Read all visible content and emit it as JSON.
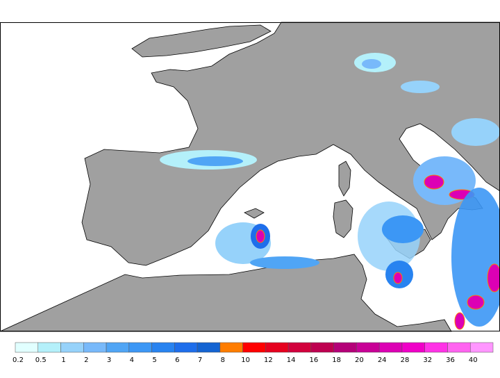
{
  "legend": {
    "labels": [
      0.2,
      0.5,
      1,
      2,
      3,
      4,
      5,
      6,
      7,
      8,
      10,
      12,
      14,
      16,
      18,
      20,
      24,
      28,
      32,
      36,
      40
    ],
    "colors": [
      "#e1ffff",
      "#b4f0fa",
      "#96d2fa",
      "#78b9fa",
      "#50a5f5",
      "#3c97f5",
      "#2883f0",
      "#1e6eeb",
      "#1464d2",
      "#ff7d00",
      "#ff0000",
      "#e6001e",
      "#d2003c",
      "#be0050",
      "#b40078",
      "#c80096",
      "#dc00b4",
      "#f000c8",
      "#ff32e6",
      "#ff64f0",
      "#ff96ff"
    ]
  }
}
